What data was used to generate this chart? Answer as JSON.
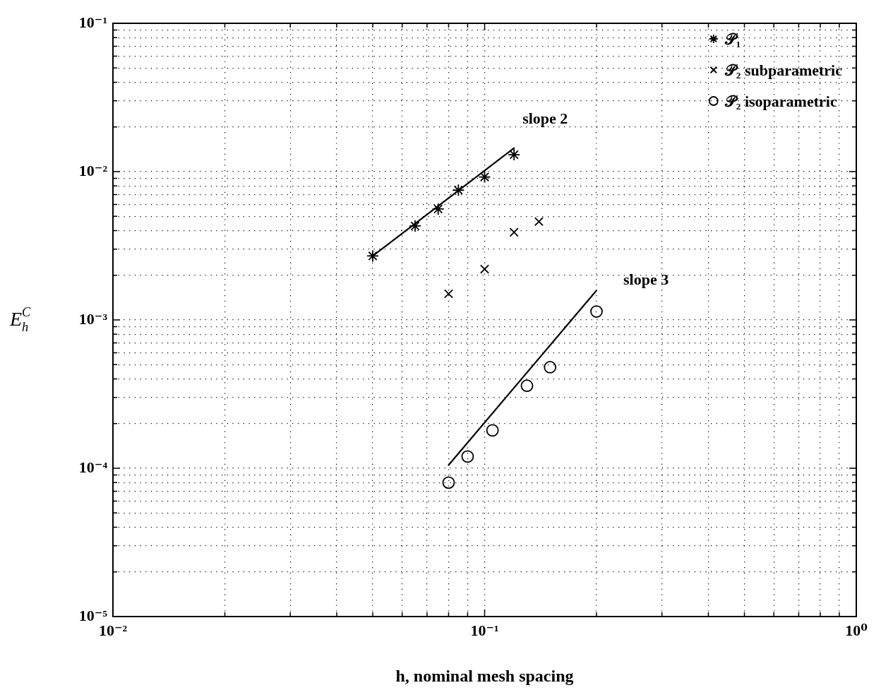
{
  "chart_data": {
    "type": "scatter",
    "xlabel": "h, nominal mesh spacing",
    "ylabel": "E$_{h}$$^{C}$",
    "log": "xy",
    "grid": true,
    "legend": "top right",
    "xlim": [
      0.01,
      1
    ],
    "ylim": [
      1e-05,
      0.1
    ],
    "xticks": [
      {
        "value": 0.01,
        "label": "10⁻²"
      },
      {
        "value": 0.02,
        "label": null
      },
      {
        "value": 0.03,
        "label": null
      },
      {
        "value": 0.04,
        "label": null
      },
      {
        "value": 0.05,
        "label": null
      },
      {
        "value": 0.06,
        "label": null
      },
      {
        "value": 0.07,
        "label": null
      },
      {
        "value": 0.08,
        "label": null
      },
      {
        "value": 0.09,
        "label": null
      },
      {
        "value": 0.1,
        "label": "10⁻¹"
      },
      {
        "value": 0.2,
        "label": null
      },
      {
        "value": 0.3,
        "label": null
      },
      {
        "value": 0.4,
        "label": null
      },
      {
        "value": 0.5,
        "label": null
      },
      {
        "value": 0.6,
        "label": null
      },
      {
        "value": 0.7,
        "label": null
      },
      {
        "value": 0.8,
        "label": null
      },
      {
        "value": 0.9,
        "label": null
      },
      {
        "value": 1,
        "label": "10⁰"
      }
    ],
    "yticks": [
      {
        "value": 1e-05,
        "label": "10⁻⁵"
      },
      {
        "value": 2e-05,
        "label": null
      },
      {
        "value": 3e-05,
        "label": null
      },
      {
        "value": 4e-05,
        "label": null
      },
      {
        "value": 5e-05,
        "label": null
      },
      {
        "value": 6e-05,
        "label": null
      },
      {
        "value": 7e-05,
        "label": null
      },
      {
        "value": 8e-05,
        "label": null
      },
      {
        "value": 9e-05,
        "label": null
      },
      {
        "value": 0.0001,
        "label": "10⁻⁴"
      },
      {
        "value": 0.0002,
        "label": null
      },
      {
        "value": 0.0003,
        "label": null
      },
      {
        "value": 0.0004,
        "label": null
      },
      {
        "value": 0.0005,
        "label": null
      },
      {
        "value": 0.0006,
        "label": null
      },
      {
        "value": 0.0007,
        "label": null
      },
      {
        "value": 0.0008,
        "label": null
      },
      {
        "value": 0.0009,
        "label": null
      },
      {
        "value": 0.001,
        "label": "10⁻³"
      },
      {
        "value": 0.002,
        "label": null
      },
      {
        "value": 0.003,
        "label": null
      },
      {
        "value": 0.004,
        "label": null
      },
      {
        "value": 0.005,
        "label": null
      },
      {
        "value": 0.006,
        "label": null
      },
      {
        "value": 0.007,
        "label": null
      },
      {
        "value": 0.008,
        "label": null
      },
      {
        "value": 0.009,
        "label": null
      },
      {
        "value": 0.01,
        "label": "10⁻²"
      },
      {
        "value": 0.02,
        "label": null
      },
      {
        "value": 0.03,
        "label": null
      },
      {
        "value": 0.04,
        "label": null
      },
      {
        "value": 0.05,
        "label": null
      },
      {
        "value": 0.06,
        "label": null
      },
      {
        "value": 0.07,
        "label": null
      },
      {
        "value": 0.08,
        "label": null
      },
      {
        "value": 0.09,
        "label": null
      },
      {
        "value": 0.1,
        "label": "10⁻¹"
      }
    ],
    "series": [
      {
        "name": "𝒫₁",
        "color": "#000000",
        "x": [
          0.05,
          0.065,
          0.075,
          0.085,
          0.1,
          0.12
        ],
        "values": [
          0.0027,
          0.0043,
          0.0056,
          0.0075,
          0.0092,
          0.013
        ]
      },
      {
        "name": "𝒫₂ subparametric",
        "marker": "cross",
        "color": "#000000",
        "x": [
          0.08,
          0.1,
          0.12,
          0.14
        ],
        "values": [
          0.0015,
          0.0022,
          0.0039,
          0.0046
        ]
      },
      {
        "name": "𝒫₂ isoparametric",
        "marker": "circle",
        "color": "#000000",
        "x": [
          0.08,
          0.09,
          0.105,
          0.13,
          0.15,
          0.2
        ],
        "values": [
          8e-05,
          0.00012,
          0.00018,
          0.00036,
          0.00048,
          0.00114
        ]
      },
      {
        "type": "line",
        "marker": "none",
        "line_style": "solid",
        "color": "#000000",
        "x": [
          0.05,
          0.12
        ],
        "values": [
          0.0027,
          0.0144
        ]
      },
      {
        "type": "line",
        "marker": "none",
        "line_style": "solid",
        "color": "#000000",
        "x": [
          0.08,
          0.2
        ],
        "values": [
          0.000105,
          0.00158
        ]
      }
    ],
    "annotations": [
      "slope 2",
      "slope 3"
    ]
  }
}
